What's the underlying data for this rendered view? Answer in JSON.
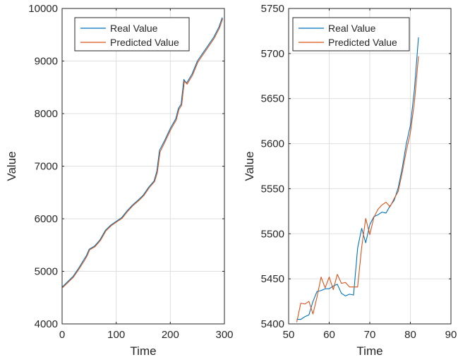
{
  "chart_data": [
    {
      "type": "line",
      "title": "",
      "xlabel": "Time",
      "ylabel": "Value",
      "xlim": [
        0,
        300
      ],
      "ylim": [
        4000,
        10000
      ],
      "xticks": [
        0,
        100,
        200,
        300
      ],
      "yticks": [
        4000,
        5000,
        6000,
        7000,
        8000,
        9000,
        10000
      ],
      "grid": true,
      "legend_position": "top-left",
      "series": [
        {
          "name": "Real Value",
          "color": "#0072BD",
          "x": [
            0,
            10,
            20,
            30,
            40,
            45,
            50,
            60,
            70,
            80,
            90,
            100,
            110,
            120,
            130,
            140,
            150,
            160,
            170,
            175,
            180,
            190,
            200,
            210,
            215,
            220,
            225,
            230,
            240,
            250,
            260,
            270,
            280,
            290,
            296
          ],
          "y": [
            4700,
            4800,
            4900,
            5050,
            5220,
            5300,
            5420,
            5480,
            5600,
            5780,
            5880,
            5950,
            6020,
            6150,
            6260,
            6350,
            6450,
            6600,
            6720,
            6900,
            7300,
            7500,
            7720,
            7900,
            8100,
            8180,
            8650,
            8580,
            8750,
            9000,
            9150,
            9300,
            9450,
            9650,
            9830
          ]
        },
        {
          "name": "Predicted Value",
          "color": "#D95319",
          "x": [
            1,
            11,
            21,
            31,
            41,
            46,
            51,
            61,
            71,
            81,
            91,
            101,
            111,
            121,
            131,
            141,
            151,
            161,
            171,
            176,
            181,
            191,
            201,
            211,
            216,
            221,
            226,
            231,
            241,
            251,
            261,
            271,
            281,
            291,
            297
          ],
          "y": [
            4690,
            4790,
            4890,
            5040,
            5200,
            5290,
            5410,
            5470,
            5590,
            5770,
            5870,
            5940,
            6010,
            6140,
            6250,
            6340,
            6440,
            6590,
            6710,
            6880,
            7270,
            7480,
            7700,
            7880,
            8080,
            8160,
            8620,
            8560,
            8730,
            8980,
            9130,
            9280,
            9430,
            9630,
            9810
          ]
        }
      ]
    },
    {
      "type": "line",
      "title": "",
      "xlabel": "Time",
      "ylabel": "Value",
      "xlim": [
        50,
        90
      ],
      "ylim": [
        5400,
        5750
      ],
      "xticks": [
        50,
        60,
        70,
        80,
        90
      ],
      "yticks": [
        5400,
        5450,
        5500,
        5550,
        5600,
        5650,
        5700,
        5750
      ],
      "grid": true,
      "legend_position": "top-right",
      "series": [
        {
          "name": "Real Value",
          "color": "#0072BD",
          "x": [
            52,
            53,
            54,
            55,
            56,
            57,
            58,
            59,
            60,
            61,
            62,
            63,
            64,
            65,
            66,
            67,
            68,
            69,
            70,
            71,
            72,
            73,
            74,
            75,
            76,
            77,
            78,
            79,
            80,
            81,
            82
          ],
          "y": [
            5405,
            5405,
            5408,
            5410,
            5425,
            5436,
            5437,
            5439,
            5439,
            5442,
            5444,
            5434,
            5431,
            5433,
            5432,
            5484,
            5506,
            5490,
            5510,
            5519,
            5521,
            5524,
            5523,
            5531,
            5537,
            5551,
            5573,
            5600,
            5620,
            5660,
            5718
          ]
        },
        {
          "name": "Predicted Value",
          "color": "#D95319",
          "x": [
            52,
            53,
            54,
            55,
            56,
            57,
            58,
            59,
            60,
            61,
            62,
            63,
            64,
            65,
            66,
            67,
            68,
            69,
            70,
            71,
            72,
            73,
            74,
            75,
            76,
            77,
            78,
            79,
            80,
            81,
            82
          ],
          "y": [
            5402,
            5423,
            5422,
            5425,
            5411,
            5430,
            5452,
            5440,
            5452,
            5438,
            5455,
            5445,
            5446,
            5441,
            5441,
            5441,
            5485,
            5517,
            5499,
            5518,
            5527,
            5532,
            5535,
            5530,
            5539,
            5547,
            5568,
            5592,
            5612,
            5646,
            5697
          ]
        }
      ]
    }
  ]
}
